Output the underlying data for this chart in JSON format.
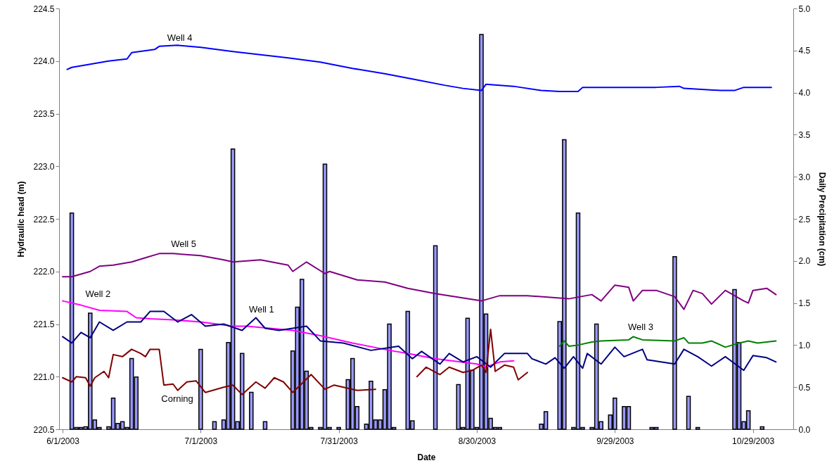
{
  "chart_data": {
    "type": "line",
    "xlabel": "Date",
    "ylabel": "Hydraulic head (m)",
    "y2label": "Daily Precipitation (cm)",
    "xlim": [
      "2003-06-01",
      "2003-11-06"
    ],
    "xticks": [
      {
        "value": "2003-06-01",
        "label": "6/1/2003"
      },
      {
        "value": "2003-07-01",
        "label": "7/1/2003"
      },
      {
        "value": "2003-07-31",
        "label": "7/31/2003"
      },
      {
        "value": "2003-08-30",
        "label": "8/30/2003"
      },
      {
        "value": "2003-09-29",
        "label": "9/29/2003"
      },
      {
        "value": "2003-10-29",
        "label": "10/29/2003"
      }
    ],
    "ylim": [
      220.5,
      224.5
    ],
    "yticks": [
      {
        "value": 220.5,
        "label": "220.5"
      },
      {
        "value": 221,
        "label": "221.0"
      },
      {
        "value": 221.5,
        "label": "221.5"
      },
      {
        "value": 222,
        "label": "222.0"
      },
      {
        "value": 222.5,
        "label": "222.5"
      },
      {
        "value": 223,
        "label": "223.0"
      },
      {
        "value": 223.5,
        "label": "223.5"
      },
      {
        "value": 224,
        "label": "224.0"
      },
      {
        "value": 224.5,
        "label": "224.5"
      }
    ],
    "y2lim": [
      0,
      5
    ],
    "y2ticks": [
      {
        "value": 0,
        "label": "0.0"
      },
      {
        "value": 0.5,
        "label": "0.5"
      },
      {
        "value": 1,
        "label": "1.0"
      },
      {
        "value": 1.5,
        "label": "1.5"
      },
      {
        "value": 2,
        "label": "2.0"
      },
      {
        "value": 2.5,
        "label": "2.5"
      },
      {
        "value": 3,
        "label": "3.0"
      },
      {
        "value": 3.5,
        "label": "3.5"
      },
      {
        "value": 4,
        "label": "4.0"
      },
      {
        "value": 4.5,
        "label": "4.5"
      },
      {
        "value": 5,
        "label": "5.0"
      }
    ],
    "grid": false,
    "marker": "none",
    "line_style": "solid",
    "series": [
      {
        "name": "Well 4",
        "color": "#0000ff",
        "x": [
          "2003-06-02",
          "2003-06-03",
          "2003-06-07",
          "2003-06-11",
          "2003-06-15",
          "2003-06-16",
          "2003-06-21",
          "2003-06-22",
          "2003-06-26",
          "2003-07-01",
          "2003-07-08",
          "2003-07-14",
          "2003-07-20",
          "2003-07-27",
          "2003-08-03",
          "2003-08-10",
          "2003-08-16",
          "2003-08-23",
          "2003-08-27",
          "2003-08-31",
          "2003-09-01",
          "2003-09-07",
          "2003-09-13",
          "2003-09-17",
          "2003-09-21",
          "2003-09-22",
          "2003-09-30",
          "2003-10-08",
          "2003-10-13",
          "2003-10-14",
          "2003-10-22",
          "2003-10-25",
          "2003-10-27",
          "2003-11-02"
        ],
        "values": [
          223.92,
          223.94,
          223.97,
          224.0,
          224.02,
          224.08,
          224.11,
          224.14,
          224.15,
          224.13,
          224.09,
          224.06,
          224.03,
          223.99,
          223.93,
          223.88,
          223.83,
          223.77,
          223.74,
          223.72,
          223.78,
          223.76,
          223.72,
          223.71,
          223.71,
          223.75,
          223.75,
          223.75,
          223.76,
          223.74,
          223.72,
          223.72,
          223.75,
          223.75
        ]
      },
      {
        "name": "Well 5",
        "color": "#800080",
        "x": [
          "2003-06-01",
          "2003-06-03",
          "2003-06-07",
          "2003-06-09",
          "2003-06-12",
          "2003-06-16",
          "2003-06-19",
          "2003-06-22",
          "2003-06-25",
          "2003-07-01",
          "2003-07-06",
          "2003-07-08",
          "2003-07-11",
          "2003-07-14",
          "2003-07-20",
          "2003-07-21",
          "2003-07-24",
          "2003-07-28",
          "2003-07-29",
          "2003-08-04",
          "2003-08-10",
          "2003-08-15",
          "2003-08-21",
          "2003-08-31",
          "2003-09-04",
          "2003-09-10",
          "2003-09-19",
          "2003-09-24",
          "2003-09-26",
          "2003-09-29",
          "2003-10-02",
          "2003-10-03",
          "2003-10-05",
          "2003-10-08",
          "2003-10-12",
          "2003-10-14",
          "2003-10-16",
          "2003-10-18",
          "2003-10-20",
          "2003-10-23",
          "2003-10-27",
          "2003-10-28",
          "2003-10-29",
          "2003-11-01",
          "2003-11-03"
        ],
        "values": [
          221.95,
          221.95,
          222.0,
          222.05,
          222.06,
          222.09,
          222.13,
          222.17,
          222.17,
          222.15,
          222.11,
          222.09,
          222.1,
          222.11,
          222.06,
          222.0,
          222.09,
          221.98,
          222.0,
          221.92,
          221.9,
          221.84,
          221.79,
          221.72,
          221.77,
          221.77,
          221.74,
          221.78,
          221.72,
          221.87,
          221.85,
          221.72,
          221.82,
          221.82,
          221.76,
          221.64,
          221.82,
          221.79,
          221.69,
          221.82,
          221.72,
          221.7,
          221.82,
          221.84,
          221.78
        ]
      },
      {
        "name": "Well 2",
        "color": "#ff00ff",
        "x": [
          "2003-06-01",
          "2003-06-05",
          "2003-06-09",
          "2003-06-15",
          "2003-06-17",
          "2003-06-20",
          "2003-06-25",
          "2003-07-01",
          "2003-07-08",
          "2003-07-11",
          "2003-07-16",
          "2003-07-21",
          "2003-07-27",
          "2003-08-03",
          "2003-08-11",
          "2003-08-15",
          "2003-08-21",
          "2003-08-30",
          "2003-09-01",
          "2003-09-04",
          "2003-09-07"
        ],
        "values": [
          221.72,
          221.68,
          221.63,
          221.62,
          221.56,
          221.55,
          221.54,
          221.52,
          221.48,
          221.48,
          221.46,
          221.44,
          221.39,
          221.32,
          221.25,
          221.22,
          221.17,
          221.12,
          221.09,
          221.14,
          221.15
        ]
      },
      {
        "name": "Well 1",
        "color": "#000080",
        "x": [
          "2003-06-01",
          "2003-06-03",
          "2003-06-05",
          "2003-06-07",
          "2003-06-09",
          "2003-06-12",
          "2003-06-15",
          "2003-06-18",
          "2003-06-20",
          "2003-06-23",
          "2003-06-26",
          "2003-06-29",
          "2003-07-02",
          "2003-07-06",
          "2003-07-10",
          "2003-07-13",
          "2003-07-15",
          "2003-07-18",
          "2003-07-24",
          "2003-07-27",
          "2003-08-01",
          "2003-08-07",
          "2003-08-13",
          "2003-08-16",
          "2003-08-18",
          "2003-08-22",
          "2003-08-24",
          "2003-08-27",
          "2003-08-30",
          "2003-09-02",
          "2003-09-05",
          "2003-09-10",
          "2003-09-11",
          "2003-09-14",
          "2003-09-16",
          "2003-09-18",
          "2003-09-20",
          "2003-09-22",
          "2003-09-23",
          "2003-09-26",
          "2003-09-29",
          "2003-10-01",
          "2003-10-05",
          "2003-10-06",
          "2003-10-12",
          "2003-10-14",
          "2003-10-17",
          "2003-10-20",
          "2003-10-23",
          "2003-10-27",
          "2003-10-29",
          "2003-11-01",
          "2003-11-03"
        ],
        "values": [
          221.38,
          221.32,
          221.42,
          221.37,
          221.52,
          221.44,
          221.52,
          221.52,
          221.62,
          221.62,
          221.52,
          221.59,
          221.48,
          221.5,
          221.44,
          221.56,
          221.46,
          221.44,
          221.48,
          221.34,
          221.32,
          221.25,
          221.29,
          221.17,
          221.24,
          221.12,
          221.22,
          221.14,
          221.19,
          221.09,
          221.22,
          221.22,
          221.17,
          221.12,
          221.18,
          221.08,
          221.19,
          221.08,
          221.22,
          221.12,
          221.28,
          221.19,
          221.26,
          221.16,
          221.12,
          221.26,
          221.19,
          221.1,
          221.19,
          221.06,
          221.2,
          221.18,
          221.14
        ]
      },
      {
        "name": "Corning",
        "color": "#800000",
        "x": [
          "2003-06-01",
          "2003-06-03",
          "2003-06-04",
          "2003-06-06",
          "2003-06-07",
          "2003-06-08",
          "2003-06-10",
          "2003-06-11",
          "2003-06-12",
          "2003-06-14",
          "2003-06-16",
          "2003-06-18",
          "2003-06-19",
          "2003-06-20",
          "2003-06-22",
          "2003-06-23",
          "2003-06-25",
          "2003-06-26",
          "2003-06-28",
          "2003-06-30",
          "2003-07-02",
          "2003-07-06",
          "2003-07-08",
          "2003-07-10",
          "2003-07-13",
          "2003-07-15",
          "2003-07-17",
          "2003-07-19",
          "2003-07-21",
          "2003-07-25",
          "2003-07-28",
          "2003-07-30",
          "2003-08-04",
          "2003-08-08",
          "2003-08-12",
          "2003-08-17",
          "2003-08-19",
          "2003-08-22",
          "2003-08-24",
          "2003-08-27",
          "2003-08-29",
          "2003-08-31",
          "2003-09-01",
          "2003-09-02",
          "2003-09-03",
          "2003-09-05",
          "2003-09-07",
          "2003-09-08",
          "2003-09-10"
        ],
        "values": [
          220.99,
          220.95,
          221.0,
          220.99,
          220.91,
          220.99,
          221.05,
          220.99,
          221.21,
          221.19,
          221.26,
          221.22,
          221.19,
          221.26,
          221.26,
          220.92,
          220.93,
          220.87,
          220.95,
          220.96,
          220.85,
          220.9,
          220.92,
          220.83,
          220.95,
          220.89,
          220.99,
          220.95,
          220.85,
          221.02,
          220.88,
          220.92,
          220.87,
          220.88,
          null,
          221.0,
          221.09,
          221.02,
          221.09,
          221.04,
          221.06,
          221.11,
          221.04,
          221.45,
          221.05,
          221.11,
          221.09,
          220.97,
          221.04
        ]
      },
      {
        "name": "Well 3",
        "color": "#008000",
        "x": [
          "2003-09-17",
          "2003-09-18",
          "2003-09-19",
          "2003-09-21",
          "2003-09-24",
          "2003-09-26",
          "2003-10-02",
          "2003-10-03",
          "2003-10-05",
          "2003-10-12",
          "2003-10-14",
          "2003-10-15",
          "2003-10-18",
          "2003-10-20",
          "2003-10-23",
          "2003-10-26",
          "2003-10-28",
          "2003-10-30",
          "2003-11-03"
        ],
        "values": [
          221.29,
          221.34,
          221.29,
          221.3,
          221.33,
          221.34,
          221.35,
          221.38,
          221.35,
          221.34,
          221.37,
          221.32,
          221.32,
          221.34,
          221.28,
          221.32,
          221.34,
          221.32,
          221.34
        ]
      },
      {
        "type": "bar",
        "axis": "y2",
        "color": "#9999ff",
        "x": [
          "2003-06-03",
          "2003-06-04",
          "2003-06-05",
          "2003-06-06",
          "2003-06-07",
          "2003-06-08",
          "2003-06-09",
          "2003-06-11",
          "2003-06-12",
          "2003-06-13",
          "2003-06-14",
          "2003-06-15",
          "2003-06-16",
          "2003-06-17",
          "2003-07-01",
          "2003-07-04",
          "2003-07-06",
          "2003-07-07",
          "2003-07-08",
          "2003-07-09",
          "2003-07-10",
          "2003-07-12",
          "2003-07-15",
          "2003-07-21",
          "2003-07-22",
          "2003-07-23",
          "2003-07-24",
          "2003-07-25",
          "2003-07-27",
          "2003-07-28",
          "2003-07-29",
          "2003-07-31",
          "2003-08-02",
          "2003-08-03",
          "2003-08-04",
          "2003-08-06",
          "2003-08-07",
          "2003-08-08",
          "2003-08-09",
          "2003-08-10",
          "2003-08-11",
          "2003-08-12",
          "2003-08-15",
          "2003-08-16",
          "2003-08-21",
          "2003-08-26",
          "2003-08-27",
          "2003-08-28",
          "2003-08-29",
          "2003-08-30",
          "2003-08-31",
          "2003-09-01",
          "2003-09-02",
          "2003-09-03",
          "2003-09-04",
          "2003-09-13",
          "2003-09-14",
          "2003-09-17",
          "2003-09-18",
          "2003-09-20",
          "2003-09-21",
          "2003-09-22",
          "2003-09-24",
          "2003-09-25",
          "2003-09-26",
          "2003-09-28",
          "2003-09-29",
          "2003-10-01",
          "2003-10-02",
          "2003-10-07",
          "2003-10-08",
          "2003-10-12",
          "2003-10-15",
          "2003-10-17",
          "2003-10-25",
          "2003-10-26",
          "2003-10-27",
          "2003-10-28",
          "2003-10-31"
        ],
        "values": [
          2.57,
          0.02,
          0.02,
          0.03,
          1.38,
          0.11,
          0.02,
          0.03,
          0.37,
          0.07,
          0.09,
          0.02,
          0.84,
          0.62,
          0.95,
          0.09,
          0.11,
          1.03,
          3.33,
          0.09,
          0.9,
          0.44,
          0.09,
          0.93,
          1.45,
          1.78,
          0.69,
          0.02,
          0.02,
          3.15,
          0.02,
          0.02,
          0.59,
          0.84,
          0.27,
          0.06,
          0.57,
          0.11,
          0.11,
          0.47,
          1.25,
          0.02,
          1.4,
          0.1,
          2.18,
          0.53,
          0.02,
          1.32,
          0.7,
          0.02,
          4.69,
          1.37,
          0.13,
          0.02,
          0.02,
          0.06,
          0.21,
          1.28,
          3.44,
          0.02,
          2.57,
          0.02,
          0.02,
          1.25,
          0.09,
          0.17,
          0.37,
          0.27,
          0.27,
          0.02,
          0.02,
          2.05,
          0.39,
          0.02,
          1.66,
          1.03,
          0.09,
          0.22,
          0.03
        ]
      }
    ]
  }
}
